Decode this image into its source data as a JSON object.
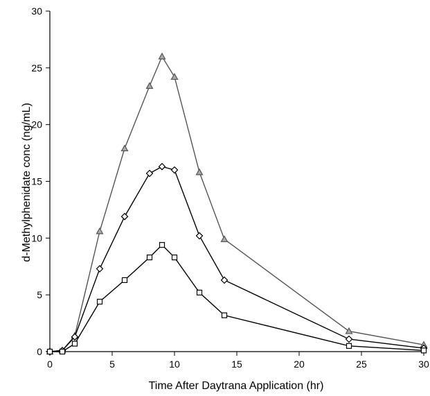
{
  "chart_data": {
    "type": "line",
    "title": "",
    "xlabel": "Time  After Daytrana Application (hr)",
    "ylabel": "d-Methylphenidate conc (ng/mL)",
    "xlim": [
      0,
      30
    ],
    "ylim": [
      0,
      30
    ],
    "xticks": [
      0,
      5,
      10,
      15,
      20,
      25,
      30
    ],
    "yticks": [
      0,
      5,
      10,
      15,
      20,
      25,
      30
    ],
    "grid": false,
    "series": [
      {
        "marker": "triangle",
        "color": "#555555",
        "x": [
          0,
          1,
          2,
          4,
          6,
          8,
          9,
          10,
          12,
          14,
          24,
          30
        ],
        "y": [
          0,
          0.1,
          1.4,
          10.6,
          17.9,
          23.4,
          26.0,
          24.2,
          15.8,
          9.9,
          1.8,
          0.6
        ]
      },
      {
        "marker": "diamond",
        "color": "#000000",
        "x": [
          0,
          1,
          2,
          4,
          6,
          8,
          9,
          10,
          12,
          14,
          24,
          30
        ],
        "y": [
          0,
          0.1,
          1.3,
          7.3,
          11.9,
          15.7,
          16.3,
          16.0,
          10.2,
          6.3,
          1.1,
          0.3
        ]
      },
      {
        "marker": "square",
        "color": "#000000",
        "x": [
          0,
          1,
          2,
          4,
          6,
          8,
          9,
          10,
          12,
          14,
          24,
          30
        ],
        "y": [
          0,
          0,
          0.7,
          4.4,
          6.3,
          8.3,
          9.4,
          8.3,
          5.2,
          3.2,
          0.5,
          0.1
        ]
      }
    ]
  }
}
